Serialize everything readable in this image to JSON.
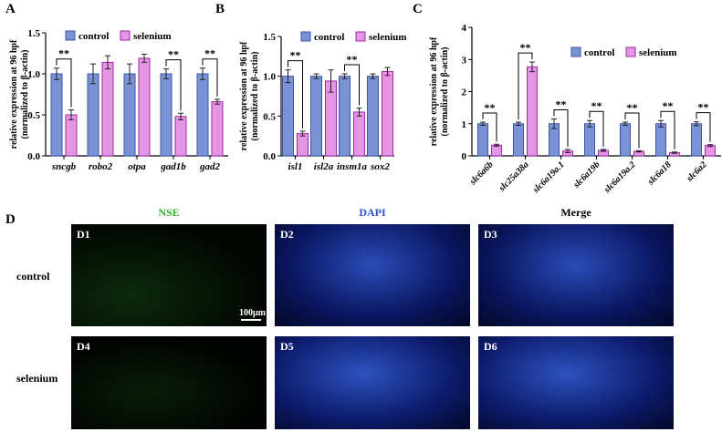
{
  "panel_labels": {
    "A": "A",
    "B": "B",
    "C": "C",
    "D": "D"
  },
  "colors": {
    "control": "#7b93d4",
    "control_edge": "#3a55a8",
    "selenium": "#e396e3",
    "selenium_edge": "#a12aa1"
  },
  "chart_data": [
    {
      "type": "bar",
      "panel": "A",
      "ylabel": "relative expression at 96 hpf",
      "ylabel2": "(normalized to β-actin)",
      "ylim": [
        0,
        1.5
      ],
      "yticks": [
        "0.0",
        "0.5",
        "1.0",
        "1.5"
      ],
      "categories": [
        "sncgb",
        "robo2",
        "otpa",
        "gad1b",
        "gad2"
      ],
      "legend": "top",
      "series": [
        {
          "name": "control",
          "values": [
            1.0,
            1.0,
            1.0,
            1.0,
            1.0
          ],
          "errors": [
            0.07,
            0.12,
            0.12,
            0.06,
            0.07
          ]
        },
        {
          "name": "selenium",
          "values": [
            0.5,
            1.14,
            1.19,
            0.48,
            0.66
          ],
          "errors": [
            0.06,
            0.08,
            0.05,
            0.04,
            0.03
          ]
        }
      ],
      "significance": [
        "**",
        "",
        "",
        "**",
        "**"
      ]
    },
    {
      "type": "bar",
      "panel": "B",
      "ylabel": "relative expression at 96 hpf",
      "ylabel2": "(normalized to β-actin)",
      "ylim": [
        0,
        1.5
      ],
      "yticks": [
        "0.0",
        "0.5",
        "1.0",
        "1.5"
      ],
      "categories": [
        "isl1",
        "isl2a",
        "insm1a",
        "sox2"
      ],
      "legend": "top",
      "series": [
        {
          "name": "control",
          "values": [
            1.0,
            1.0,
            1.0,
            1.0
          ],
          "errors": [
            0.08,
            0.03,
            0.03,
            0.03
          ]
        },
        {
          "name": "selenium",
          "values": [
            0.28,
            0.94,
            0.55,
            1.06
          ],
          "errors": [
            0.03,
            0.14,
            0.05,
            0.05
          ]
        }
      ],
      "significance": [
        "**",
        "",
        "**",
        ""
      ]
    },
    {
      "type": "bar",
      "panel": "C",
      "ylabel": "relative expression at 96 hpf",
      "ylabel2": "(normalized to β-actin)",
      "ylim": [
        0,
        4
      ],
      "yticks": [
        "0",
        "1",
        "2",
        "3",
        "4"
      ],
      "categories": [
        "slc6a6b",
        "slc25a38a",
        "slc6a19a.1",
        "slc6a19b",
        "slc6a19a.2",
        "slc6a18",
        "slc6a2"
      ],
      "legend": "top-right",
      "series": [
        {
          "name": "control",
          "values": [
            1,
            1,
            1,
            1,
            1,
            1,
            1
          ],
          "errors": [
            0.05,
            0.05,
            0.15,
            0.1,
            0.05,
            0.1,
            0.06
          ]
        },
        {
          "name": "selenium",
          "values": [
            0.33,
            2.77,
            0.15,
            0.17,
            0.14,
            0.1,
            0.32
          ],
          "errors": [
            0.03,
            0.15,
            0.05,
            0.03,
            0.02,
            0.02,
            0.03
          ]
        }
      ],
      "significance": [
        "**",
        "**",
        "**",
        "**",
        "**",
        "**",
        "**"
      ]
    }
  ],
  "imaging": {
    "columns": [
      "NSE",
      "DAPI",
      "Merge"
    ],
    "rows": [
      "control",
      "selenium"
    ],
    "tiles": [
      "D1",
      "D2",
      "D3",
      "D4",
      "D5",
      "D6"
    ],
    "scale_bar": "100μm"
  }
}
